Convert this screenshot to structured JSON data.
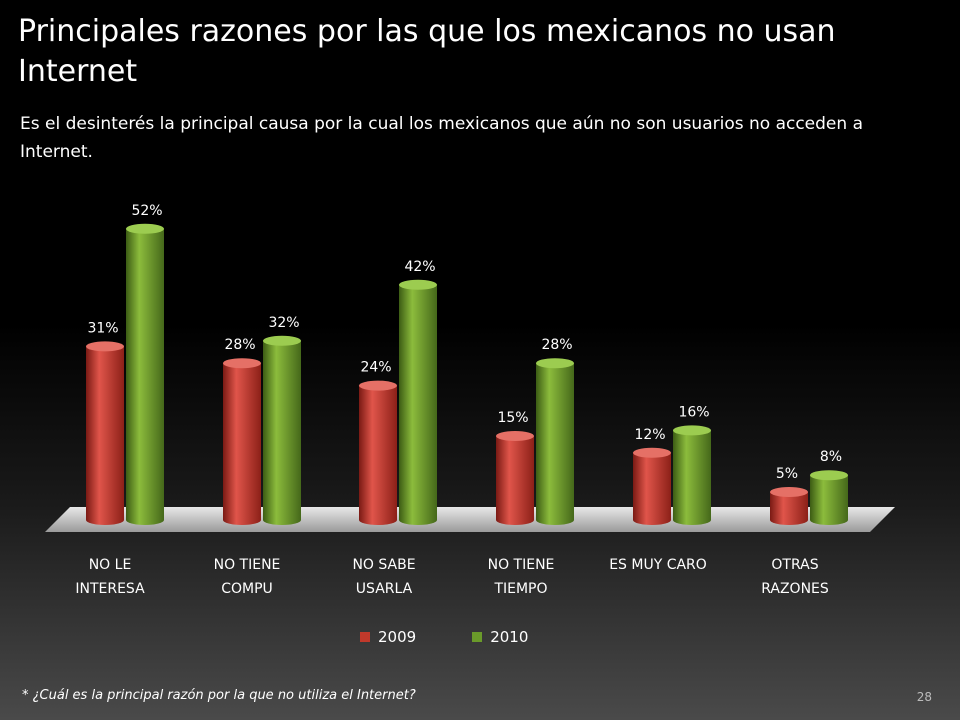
{
  "slide": {
    "title": "Principales razones por las que los mexicanos no usan Internet",
    "subtitle": "Es el desinterés la principal causa por la cual los mexicanos que aún no son usuarios no acceden a Internet.",
    "footnote": "* ¿Cuál es la principal razón por la que no utiliza el Internet?",
    "page_number": "28"
  },
  "chart_data": {
    "type": "bar",
    "title": "",
    "xlabel": "",
    "ylabel": "",
    "ylim": [
      0,
      60
    ],
    "categories": [
      [
        "NO LE",
        "INTERESA"
      ],
      [
        "NO TIENE",
        "COMPU"
      ],
      [
        "NO SABE",
        "USARLA"
      ],
      [
        "NO TIENE",
        "TIEMPO"
      ],
      [
        "ES MUY CARO"
      ],
      [
        "OTRAS",
        "RAZONES"
      ]
    ],
    "series": [
      {
        "name": "2009",
        "values": [
          31,
          28,
          24,
          15,
          12,
          5
        ],
        "labels": [
          "31%",
          "28%",
          "24%",
          "15%",
          "12%",
          "5%"
        ],
        "color": "#c0392b"
      },
      {
        "name": "2010",
        "values": [
          52,
          32,
          42,
          28,
          16,
          8
        ],
        "labels": [
          "52%",
          "32%",
          "42%",
          "28%",
          "16%",
          "8%"
        ],
        "color": "#6a9a2a"
      }
    ],
    "legend_position": "bottom",
    "grid": false
  }
}
